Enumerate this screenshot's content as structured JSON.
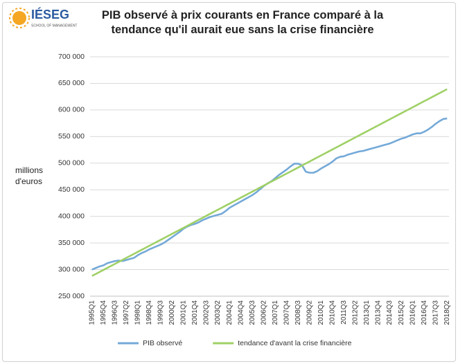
{
  "logo": {
    "name": "IÉSEG",
    "tagline": "SCHOOL OF MANAGEMENT"
  },
  "chart_data": {
    "type": "line",
    "title": "PIB observé à prix courants en France comparé à la tendance qu'il aurait eue sans la crise financière",
    "ylabel": "millions d'euros",
    "categories": [
      "1995Q1",
      null,
      null,
      "1995Q4",
      null,
      null,
      "1996Q3",
      null,
      null,
      "1997Q2",
      null,
      null,
      "1998Q1",
      null,
      null,
      "1998Q4",
      null,
      null,
      "1999Q3",
      null,
      null,
      "2000Q2",
      null,
      null,
      "2001Q1",
      null,
      null,
      "2001Q4",
      null,
      null,
      "2002Q3",
      null,
      null,
      "2003Q2",
      null,
      null,
      "2004Q1",
      null,
      null,
      "2004Q4",
      null,
      null,
      "2005Q3",
      null,
      null,
      "2006Q2",
      null,
      null,
      "2007Q1",
      null,
      null,
      "2007Q4",
      null,
      null,
      "2008Q3",
      null,
      null,
      "2009Q2",
      null,
      null,
      "2010Q1",
      null,
      null,
      "2010Q4",
      null,
      null,
      "2011Q3",
      null,
      null,
      "2012Q2",
      null,
      null,
      "2013Q1",
      null,
      null,
      "2013Q4",
      null,
      null,
      "2014Q3",
      null,
      null,
      "2015Q2",
      null,
      null,
      "2016Q1",
      null,
      null,
      "2016Q4",
      null,
      null,
      "2017Q3",
      null,
      null,
      "2018Q2"
    ],
    "series": [
      {
        "name": "PIB observé",
        "color": "#74a9d8",
        "values": [
          300000,
          303000,
          306000,
          308000,
          312000,
          314000,
          316000,
          317000,
          316000,
          318000,
          320000,
          322000,
          327000,
          331000,
          334000,
          338000,
          341000,
          344000,
          347000,
          351000,
          356000,
          361000,
          366000,
          371000,
          377000,
          381000,
          384000,
          386000,
          389000,
          393000,
          396000,
          399000,
          401000,
          403000,
          405000,
          410000,
          416000,
          420000,
          424000,
          428000,
          432000,
          436000,
          440000,
          445000,
          451000,
          457000,
          462000,
          466000,
          472000,
          478000,
          483000,
          488000,
          494000,
          499000,
          499000,
          496000,
          484000,
          482000,
          482000,
          485000,
          490000,
          494000,
          498000,
          503000,
          509000,
          512000,
          513000,
          516000,
          518000,
          520000,
          522000,
          523000,
          525000,
          527000,
          529000,
          531000,
          533000,
          535000,
          537000,
          540000,
          543000,
          546000,
          548000,
          551000,
          554000,
          556000,
          556000,
          559000,
          563000,
          568000,
          574000,
          579000,
          583000,
          584000
        ]
      },
      {
        "name": "tendance d'avant la crise financière",
        "color": "#9fd066",
        "values": [
          288000,
          291775,
          295550,
          299325,
          303100,
          306875,
          310650,
          314425,
          318200,
          321975,
          325750,
          329525,
          333300,
          337075,
          340850,
          344625,
          348400,
          352175,
          355950,
          359725,
          363500,
          367275,
          371050,
          374825,
          378600,
          382375,
          386150,
          389925,
          393700,
          397475,
          401250,
          405025,
          408800,
          412575,
          416350,
          420125,
          423900,
          427675,
          431450,
          435225,
          439000,
          442775,
          446550,
          450325,
          454100,
          457875,
          461650,
          465425,
          469200,
          472975,
          476750,
          480525,
          484300,
          488075,
          491850,
          495625,
          499400,
          503175,
          506950,
          510725,
          514500,
          518275,
          522050,
          525825,
          529600,
          533375,
          537150,
          540925,
          544700,
          548475,
          552250,
          556025,
          559800,
          563575,
          567350,
          571125,
          574900,
          578675,
          582450,
          586225,
          590000,
          593775,
          597550,
          601325,
          605100,
          608875,
          612650,
          616425,
          620200,
          623975,
          627750,
          631525,
          635300,
          639075
        ]
      }
    ],
    "ylim": [
      250000,
      700000
    ],
    "yticks": [
      {
        "value": 250000,
        "label": "250 000"
      },
      {
        "value": 300000,
        "label": "300 000"
      },
      {
        "value": 350000,
        "label": "350 000"
      },
      {
        "value": 400000,
        "label": "400 000"
      },
      {
        "value": 450000,
        "label": "450 000"
      },
      {
        "value": 500000,
        "label": "500 000"
      },
      {
        "value": 550000,
        "label": "550 000"
      },
      {
        "value": 600000,
        "label": "600 000"
      },
      {
        "value": 650000,
        "label": "650 000"
      },
      {
        "value": 700000,
        "label": "700 000"
      }
    ],
    "grid": true,
    "legend": "bottom"
  }
}
